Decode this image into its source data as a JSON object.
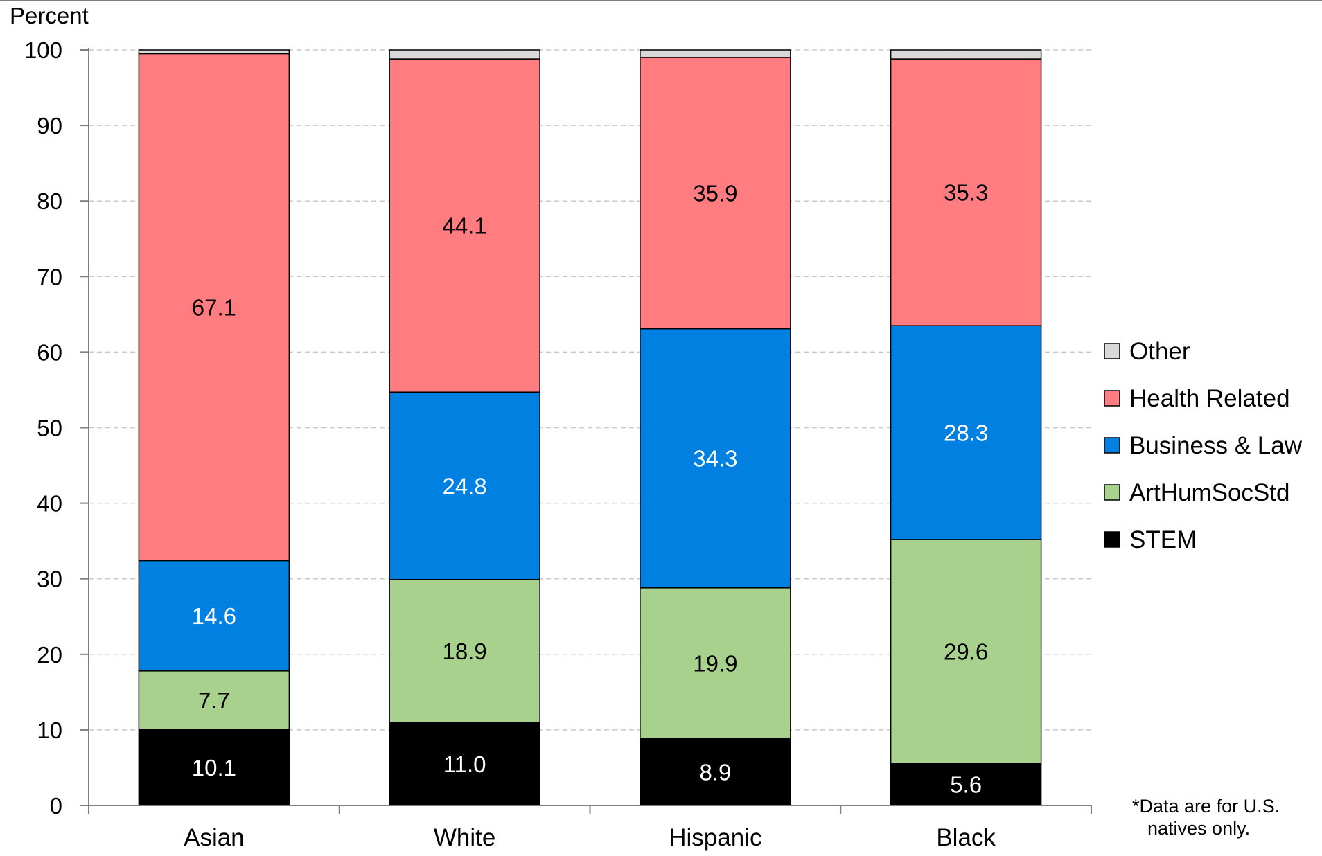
{
  "chart_data": {
    "type": "bar",
    "stacked": true,
    "ylabel": "Percent",
    "ylim": [
      0,
      100
    ],
    "yticks": [
      0,
      10,
      20,
      30,
      40,
      50,
      60,
      70,
      80,
      90,
      100
    ],
    "grid": true,
    "legend_position": "right",
    "categories": [
      "Asian",
      "White",
      "Hispanic",
      "Black"
    ],
    "series": [
      {
        "name": "STEM",
        "color": "#000000",
        "label_color": "#ffffff",
        "values": [
          10.1,
          11.0,
          8.9,
          5.6
        ],
        "labels": [
          "10.1",
          "11.0",
          "8.9",
          "5.6"
        ]
      },
      {
        "name": "ArtHumSocStd",
        "color": "#a9d18e",
        "label_color": "#000000",
        "values": [
          7.7,
          18.9,
          19.9,
          29.6
        ],
        "labels": [
          "7.7",
          "18.9",
          "19.9",
          "29.6"
        ]
      },
      {
        "name": "Business & Law",
        "color": "#0080e0",
        "label_color": "#ffffff",
        "values": [
          14.6,
          24.8,
          34.3,
          28.3
        ],
        "labels": [
          "14.6",
          "24.8",
          "34.3",
          "28.3"
        ]
      },
      {
        "name": "Health Related",
        "color": "#ff7c80",
        "label_color": "#000000",
        "values": [
          67.1,
          44.1,
          35.9,
          35.3
        ],
        "labels": [
          "67.1",
          "44.1",
          "35.9",
          "35.3"
        ]
      },
      {
        "name": "Other",
        "color": "#d9d9d9",
        "label_color": "#000000",
        "values": [
          0.5,
          1.2,
          1.0,
          1.2
        ],
        "labels": [
          "",
          "",
          "",
          ""
        ]
      }
    ],
    "legend_order": [
      "Other",
      "Health Related",
      "Business & Law",
      "ArtHumSocStd",
      "STEM"
    ],
    "footnote": [
      "*Data are for U.S.",
      "natives only."
    ]
  }
}
